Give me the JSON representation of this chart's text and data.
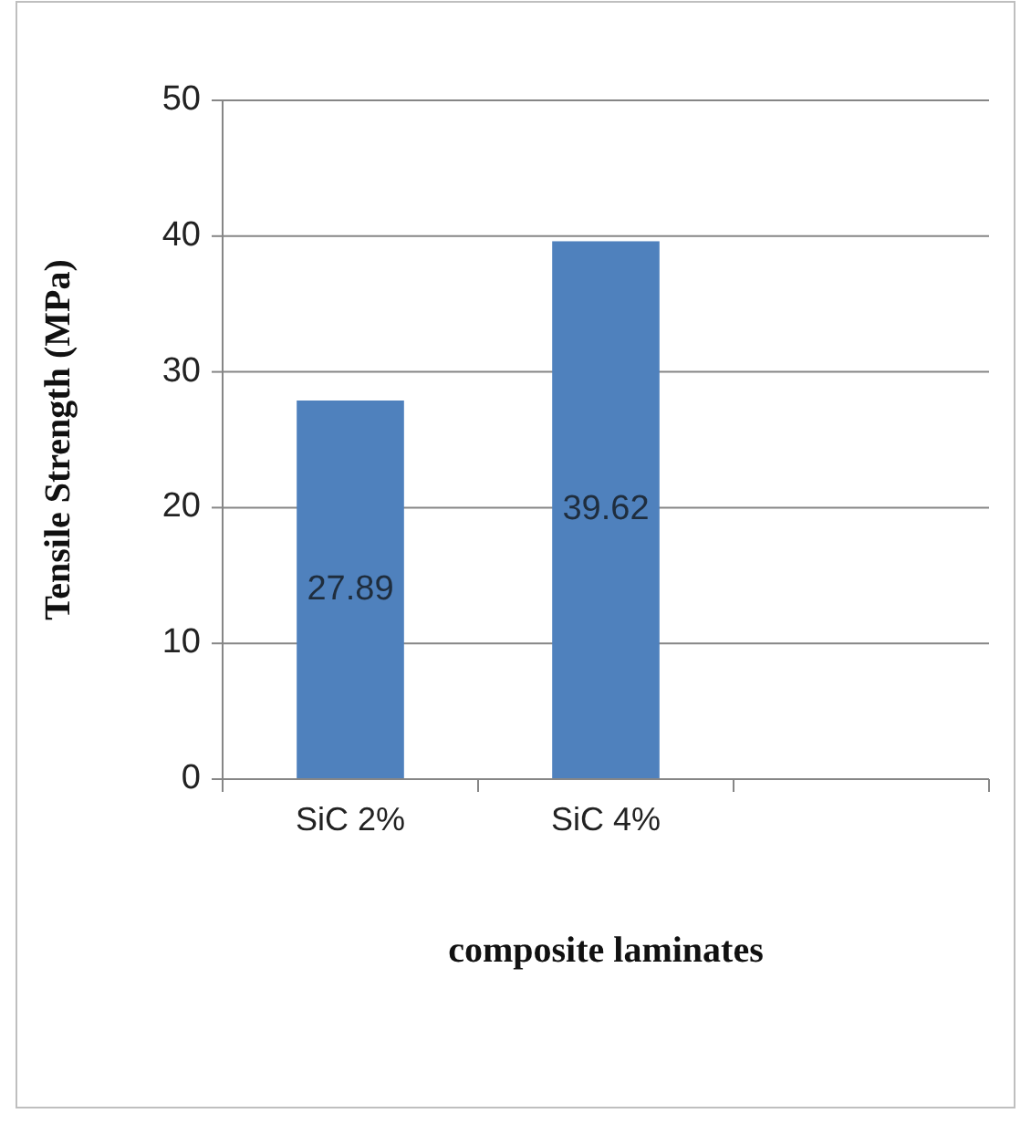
{
  "chart_data": {
    "type": "bar",
    "xlabel": "composite laminates",
    "ylabel": "Tensile Strength (MPa)",
    "categories": [
      "SiC 2%",
      "SiC 4%",
      null
    ],
    "values": [
      27.89,
      39.62,
      null
    ],
    "color": "#4f81bd",
    "ylim": [
      0,
      50
    ],
    "yticks": [
      0,
      10,
      20,
      30,
      40,
      50
    ],
    "grid": "y",
    "data_labels": true
  }
}
